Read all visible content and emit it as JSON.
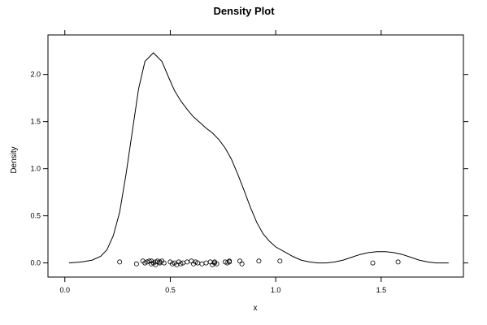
{
  "chart_data": {
    "type": "line",
    "title": "Density Plot",
    "xlabel": "x",
    "ylabel": "Density",
    "xlim": [
      -0.08,
      1.89
    ],
    "ylim": [
      -0.15,
      2.42
    ],
    "x_ticks": [
      0.0,
      0.5,
      1.0,
      1.5
    ],
    "x_tick_labels": [
      "0.0",
      "0.5",
      "1.0",
      "1.5"
    ],
    "y_ticks": [
      0.0,
      0.5,
      1.0,
      1.5,
      2.0
    ],
    "y_tick_labels": [
      "0.0",
      "0.5",
      "1.0",
      "1.5",
      "2.0"
    ],
    "grid": false,
    "density_curve": {
      "x": [
        0.02,
        0.08,
        0.13,
        0.17,
        0.2,
        0.23,
        0.26,
        0.29,
        0.32,
        0.35,
        0.38,
        0.42,
        0.46,
        0.49,
        0.52,
        0.55,
        0.58,
        0.61,
        0.64,
        0.67,
        0.7,
        0.73,
        0.76,
        0.79,
        0.82,
        0.85,
        0.88,
        0.91,
        0.94,
        0.97,
        1.0,
        1.04,
        1.08,
        1.12,
        1.16,
        1.2,
        1.24,
        1.28,
        1.32,
        1.36,
        1.4,
        1.44,
        1.48,
        1.52,
        1.56,
        1.6,
        1.64,
        1.68,
        1.72,
        1.76,
        1.82
      ],
      "y": [
        0.0,
        0.01,
        0.03,
        0.07,
        0.14,
        0.29,
        0.54,
        0.94,
        1.4,
        1.85,
        2.14,
        2.23,
        2.14,
        1.98,
        1.83,
        1.72,
        1.63,
        1.55,
        1.49,
        1.43,
        1.38,
        1.31,
        1.22,
        1.1,
        0.94,
        0.77,
        0.59,
        0.43,
        0.31,
        0.23,
        0.17,
        0.12,
        0.07,
        0.03,
        0.01,
        0.0,
        0.0,
        0.01,
        0.03,
        0.06,
        0.09,
        0.11,
        0.12,
        0.12,
        0.11,
        0.09,
        0.06,
        0.03,
        0.01,
        0.0,
        0.0
      ]
    },
    "rug_points": {
      "x": [
        0.26,
        0.34,
        0.37,
        0.38,
        0.39,
        0.4,
        0.41,
        0.41,
        0.42,
        0.43,
        0.43,
        0.44,
        0.45,
        0.45,
        0.46,
        0.47,
        0.5,
        0.51,
        0.52,
        0.53,
        0.54,
        0.55,
        0.56,
        0.58,
        0.6,
        0.61,
        0.62,
        0.63,
        0.65,
        0.67,
        0.69,
        0.7,
        0.71,
        0.71,
        0.72,
        0.76,
        0.77,
        0.78,
        0.78,
        0.83,
        0.84,
        0.92,
        1.02,
        1.46,
        1.58
      ],
      "y": [
        0.01,
        -0.01,
        0.02,
        0.0,
        0.01,
        0.02,
        -0.01,
        0.02,
        0.0,
        0.01,
        -0.02,
        0.02,
        0.0,
        0.01,
        0.02,
        0.0,
        0.01,
        -0.01,
        0.0,
        -0.02,
        0.01,
        -0.01,
        0.0,
        0.01,
        0.02,
        -0.01,
        0.01,
        0.0,
        -0.01,
        0.0,
        0.01,
        -0.02,
        0.0,
        0.01,
        -0.01,
        0.01,
        0.0,
        0.02,
        0.01,
        0.02,
        -0.01,
        0.02,
        0.02,
        0.0,
        0.01
      ]
    }
  }
}
